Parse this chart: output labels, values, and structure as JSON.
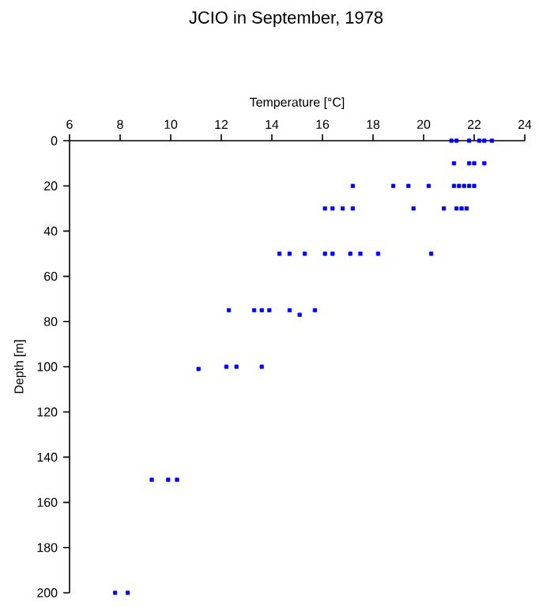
{
  "chart_data": {
    "type": "scatter",
    "title": "JCIO in September, 1978",
    "xlabel": "Temperature [°C]",
    "ylabel": "Depth [m]",
    "xlim": [
      6,
      24
    ],
    "xticks": [
      6,
      8,
      10,
      12,
      14,
      16,
      18,
      20,
      22,
      24
    ],
    "ylim": [
      200,
      0
    ],
    "yticks": [
      0,
      20,
      40,
      60,
      80,
      100,
      120,
      140,
      160,
      180,
      200
    ],
    "marker": "square",
    "grid": false,
    "series": [
      {
        "color": "#0000ff",
        "x": [
          21.1,
          21.3,
          21.8,
          22.2,
          22.4,
          22.7,
          21.2,
          21.8,
          22.0,
          22.4,
          17.2,
          18.8,
          19.4,
          20.2,
          21.2,
          21.4,
          21.6,
          21.8,
          22.0,
          16.1,
          16.4,
          16.8,
          17.2,
          19.6,
          20.8,
          21.3,
          21.5,
          21.7,
          14.3,
          14.7,
          15.3,
          16.1,
          16.4,
          17.1,
          17.5,
          18.2,
          20.3,
          12.3,
          13.3,
          13.6,
          13.9,
          14.7,
          15.1,
          15.7,
          11.1,
          12.2,
          12.6,
          13.6,
          9.25,
          9.9,
          10.25,
          7.8,
          8.3
        ],
        "values": [
          0,
          0,
          0,
          0,
          0,
          0,
          10,
          10,
          10,
          10,
          20,
          20,
          20,
          20,
          20,
          20,
          20,
          20,
          20,
          30,
          30,
          30,
          30,
          30,
          30,
          30,
          30,
          30,
          50,
          50,
          50,
          50,
          50,
          50,
          50,
          50,
          50,
          75,
          75,
          75,
          75,
          75,
          77,
          75,
          101,
          100,
          100,
          100,
          150,
          150,
          150,
          200,
          200
        ]
      }
    ]
  }
}
